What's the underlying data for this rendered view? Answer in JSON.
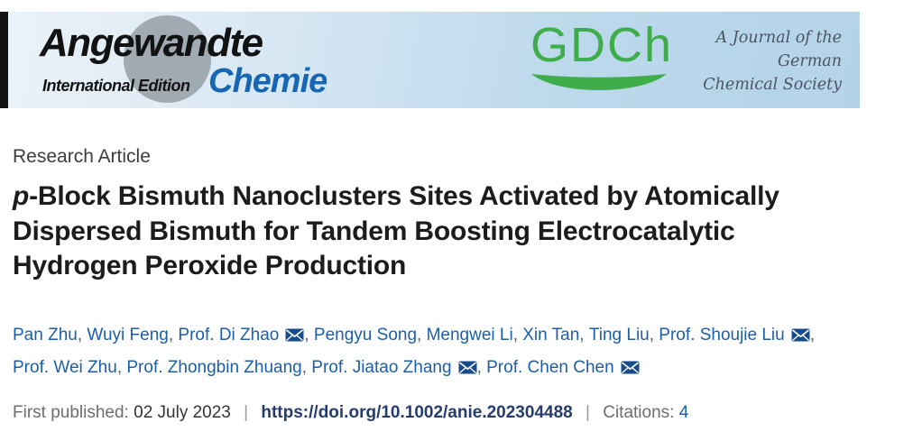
{
  "banner": {
    "journal_name_top": "Angewandte",
    "journal_edition": "International Edition",
    "journal_name_bottom": "Chemie",
    "gdch_logo_text": "GDCh",
    "society_lines": [
      "A Journal of the",
      "German",
      "Chemical Society"
    ],
    "colors": {
      "banner_blue": "#b4d3e9",
      "gdch_green": "#3fae4a",
      "chemie_blue": "#1666b3"
    }
  },
  "article": {
    "type_label": "Research Article",
    "title": {
      "line1_italic": "p",
      "line1_rest": "-Block Bismuth Nanoclusters Sites Activated by Atomically",
      "line2": "Dispersed Bismuth for Tandem Boosting Electrocatalytic",
      "line3": "Hydrogen Peroxide Production"
    },
    "author_lines": [
      [
        {
          "name": "Pan Zhu",
          "email": false
        },
        {
          "name": "Wuyi Feng",
          "email": false
        },
        {
          "name": "Prof. Di Zhao",
          "email": true
        },
        {
          "name": "Pengyu Song",
          "email": false
        },
        {
          "name": "Mengwei Li",
          "email": false
        },
        {
          "name": "Xin Tan",
          "email": false
        },
        {
          "name": "Ting Liu",
          "email": false
        },
        {
          "name": "Prof. Shoujie Liu",
          "email": true
        }
      ],
      [
        {
          "name": "Prof. Wei Zhu",
          "email": false
        },
        {
          "name": "Prof. Zhongbin Zhuang",
          "email": false
        },
        {
          "name": "Prof. Jiatao Zhang",
          "email": true
        },
        {
          "name": "Prof. Chen Chen",
          "email": true
        }
      ]
    ],
    "meta": {
      "first_published_label": "First published:",
      "first_published_date": "02 July 2023",
      "separator": "|",
      "doi": "https://doi.org/10.1002/anie.202304488",
      "citations_label": "Citations:",
      "citations_count": "4"
    },
    "accent_colors": {
      "author_link_blue": "#1c5fa8",
      "doi_navy": "#253c6e",
      "email_icon_navy": "#174b8c"
    }
  }
}
